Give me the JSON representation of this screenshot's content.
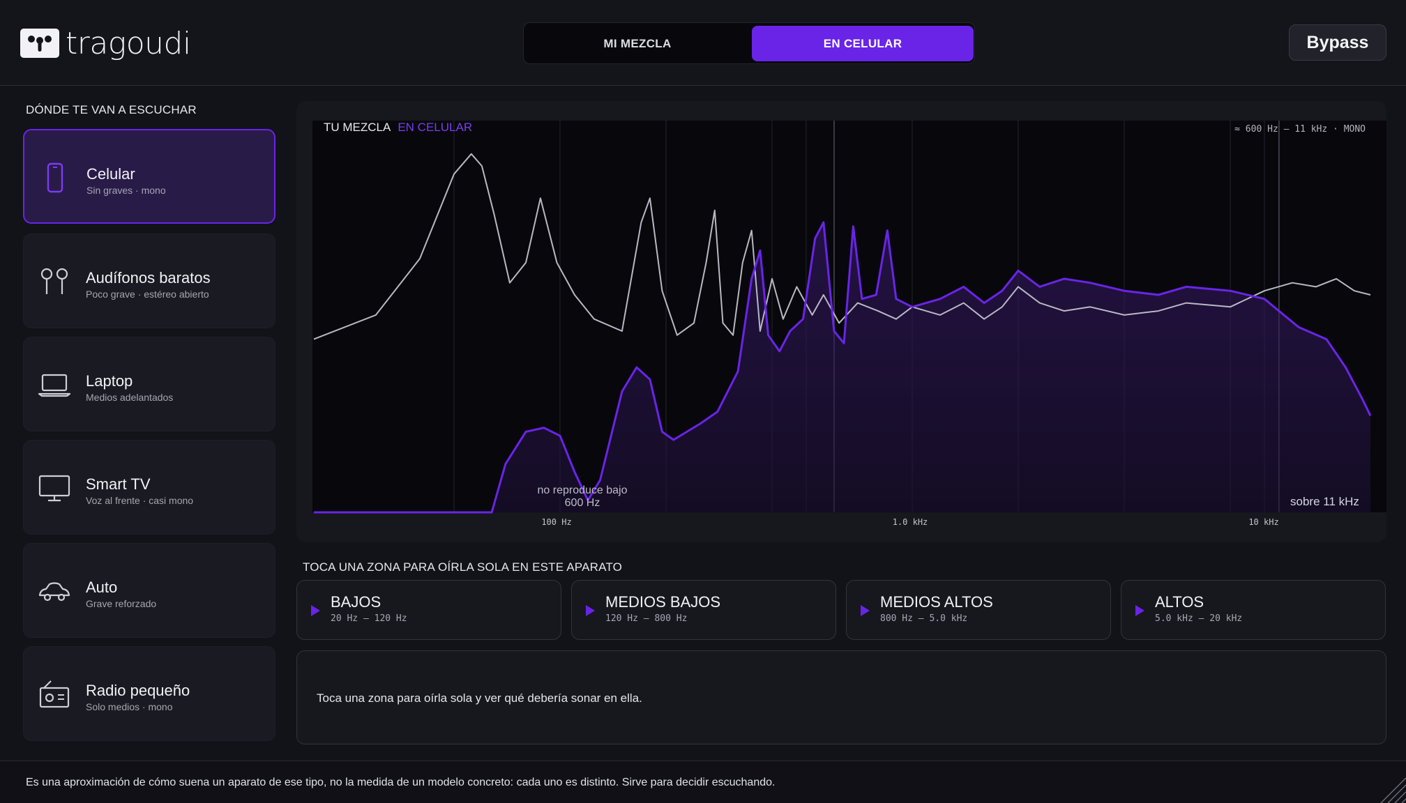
{
  "header": {
    "brand": "tragoudi",
    "tabs": [
      {
        "label": "MI MEZCLA",
        "active": false
      },
      {
        "label": "EN CELULAR",
        "active": true
      }
    ],
    "bypass_label": "Bypass"
  },
  "sidebar": {
    "title": "DÓNDE TE VAN A ESCUCHAR",
    "devices": [
      {
        "name": "Celular",
        "sub": "Sin graves · mono",
        "icon": "phone-icon",
        "active": true
      },
      {
        "name": "Audífonos baratos",
        "sub": "Poco grave · estéreo abierto",
        "icon": "earbuds-icon",
        "active": false
      },
      {
        "name": "Laptop",
        "sub": "Medios adelantados",
        "icon": "laptop-icon",
        "active": false
      },
      {
        "name": "Smart TV",
        "sub": "Voz al frente · casi mono",
        "icon": "tv-icon",
        "active": false
      },
      {
        "name": "Auto",
        "sub": "Grave reforzado",
        "icon": "car-icon",
        "active": false
      },
      {
        "name": "Radio pequeño",
        "sub": "Solo medios · mono",
        "icon": "radio-icon",
        "active": false
      }
    ]
  },
  "graph": {
    "title": "TU MEZCLA",
    "title_accent": "EN CELULAR",
    "info": "≈ 600 Hz – 11 kHz  ·  MONO",
    "left_note": "no reproduce bajo 600 Hz",
    "right_note": "sobre 11 kHz",
    "ticks": [
      "100 Hz",
      "1.0 kHz",
      "10 kHz"
    ]
  },
  "chart_data": {
    "type": "line",
    "xscale": "log",
    "xlim_hz": [
      20,
      20000
    ],
    "xticks": [
      {
        "hz": 100,
        "label": "100 Hz"
      },
      {
        "hz": 1000,
        "label": "1.0 kHz"
      },
      {
        "hz": 10000,
        "label": "10 kHz"
      }
    ],
    "passband_hz": [
      600,
      11000
    ],
    "series": [
      {
        "name": "TU MEZCLA",
        "color": "#b9b9c4",
        "points": [
          [
            20,
            0.43
          ],
          [
            30,
            0.49
          ],
          [
            40,
            0.63
          ],
          [
            50,
            0.84
          ],
          [
            56,
            0.89
          ],
          [
            60,
            0.86
          ],
          [
            65,
            0.74
          ],
          [
            72,
            0.57
          ],
          [
            80,
            0.62
          ],
          [
            88,
            0.78
          ],
          [
            98,
            0.62
          ],
          [
            110,
            0.54
          ],
          [
            125,
            0.48
          ],
          [
            150,
            0.45
          ],
          [
            170,
            0.72
          ],
          [
            180,
            0.78
          ],
          [
            195,
            0.55
          ],
          [
            215,
            0.44
          ],
          [
            240,
            0.47
          ],
          [
            260,
            0.62
          ],
          [
            275,
            0.75
          ],
          [
            290,
            0.47
          ],
          [
            310,
            0.44
          ],
          [
            330,
            0.62
          ],
          [
            350,
            0.7
          ],
          [
            370,
            0.45
          ],
          [
            400,
            0.58
          ],
          [
            430,
            0.48
          ],
          [
            470,
            0.56
          ],
          [
            520,
            0.49
          ],
          [
            560,
            0.54
          ],
          [
            620,
            0.47
          ],
          [
            700,
            0.52
          ],
          [
            800,
            0.5
          ],
          [
            900,
            0.48
          ],
          [
            1000,
            0.51
          ],
          [
            1200,
            0.49
          ],
          [
            1400,
            0.52
          ],
          [
            1600,
            0.48
          ],
          [
            1800,
            0.51
          ],
          [
            2000,
            0.56
          ],
          [
            2300,
            0.52
          ],
          [
            2700,
            0.5
          ],
          [
            3200,
            0.51
          ],
          [
            4000,
            0.49
          ],
          [
            5000,
            0.5
          ],
          [
            6000,
            0.52
          ],
          [
            8000,
            0.51
          ],
          [
            10000,
            0.55
          ],
          [
            12000,
            0.57
          ],
          [
            14000,
            0.56
          ],
          [
            16000,
            0.58
          ],
          [
            18000,
            0.55
          ],
          [
            20000,
            0.54
          ]
        ]
      },
      {
        "name": "EN CELULAR",
        "color": "#6a24e8",
        "points": [
          [
            20,
            0.0
          ],
          [
            64,
            0.0
          ],
          [
            70,
            0.12
          ],
          [
            80,
            0.2
          ],
          [
            90,
            0.21
          ],
          [
            100,
            0.19
          ],
          [
            110,
            0.1
          ],
          [
            120,
            0.03
          ],
          [
            130,
            0.08
          ],
          [
            150,
            0.3
          ],
          [
            165,
            0.36
          ],
          [
            180,
            0.33
          ],
          [
            195,
            0.2
          ],
          [
            210,
            0.18
          ],
          [
            250,
            0.22
          ],
          [
            280,
            0.25
          ],
          [
            320,
            0.35
          ],
          [
            350,
            0.58
          ],
          [
            370,
            0.65
          ],
          [
            390,
            0.44
          ],
          [
            420,
            0.4
          ],
          [
            450,
            0.45
          ],
          [
            490,
            0.48
          ],
          [
            530,
            0.68
          ],
          [
            560,
            0.72
          ],
          [
            600,
            0.45
          ],
          [
            640,
            0.42
          ],
          [
            680,
            0.71
          ],
          [
            720,
            0.53
          ],
          [
            790,
            0.54
          ],
          [
            850,
            0.7
          ],
          [
            900,
            0.53
          ],
          [
            1000,
            0.51
          ],
          [
            1200,
            0.53
          ],
          [
            1400,
            0.56
          ],
          [
            1600,
            0.52
          ],
          [
            1800,
            0.55
          ],
          [
            2000,
            0.6
          ],
          [
            2300,
            0.56
          ],
          [
            2700,
            0.58
          ],
          [
            3200,
            0.57
          ],
          [
            4000,
            0.55
          ],
          [
            5000,
            0.54
          ],
          [
            6000,
            0.56
          ],
          [
            8000,
            0.55
          ],
          [
            10000,
            0.53
          ],
          [
            11000,
            0.5
          ],
          [
            12500,
            0.46
          ],
          [
            15000,
            0.43
          ],
          [
            17000,
            0.36
          ],
          [
            19000,
            0.28
          ],
          [
            20000,
            0.24
          ]
        ]
      }
    ]
  },
  "zones": {
    "title": "TOCA UNA ZONA PARA OÍRLA SOLA EN ESTE APARATO",
    "items": [
      {
        "name": "BAJOS",
        "range": "20 Hz – 120 Hz"
      },
      {
        "name": "MEDIOS BAJOS",
        "range": "120 Hz – 800 Hz"
      },
      {
        "name": "MEDIOS ALTOS",
        "range": "800 Hz – 5.0 kHz"
      },
      {
        "name": "ALTOS",
        "range": "5.0 kHz – 20 kHz"
      }
    ],
    "hint": "Toca una zona para oírla sola y ver qué debería sonar en ella."
  },
  "footer": {
    "text": "Es una aproximación de cómo suena un aparato de ese tipo, no la medida de un modelo concreto: cada uno es distinto. Sirve para decidir escuchando."
  },
  "colors": {
    "accent": "#6a24e8",
    "background": "#121219",
    "card": "#17171e",
    "mix_line": "#b9b9c4"
  }
}
